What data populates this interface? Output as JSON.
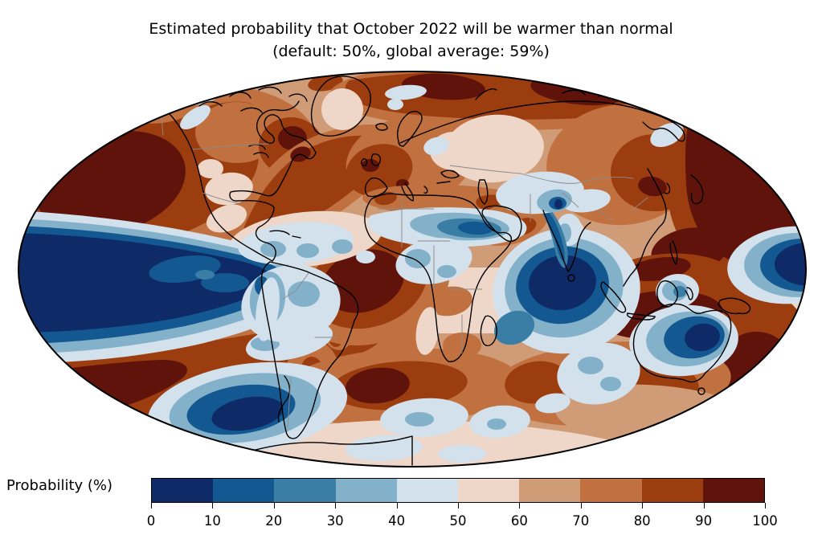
{
  "title": {
    "line1": "Estimated probability that October 2022 will be warmer than normal",
    "line2": "(default: 50%, global average: 59%)"
  },
  "colorbar": {
    "label": "Probability (%)",
    "ticks": [
      0,
      10,
      20,
      30,
      40,
      50,
      60,
      70,
      80,
      90,
      100
    ],
    "segment_colors": [
      "#0e2a67",
      "#135891",
      "#3a7ea6",
      "#84b1ca",
      "#d3e1ec",
      "#eed6c8",
      "#d09b77",
      "#c0713f",
      "#9c3d10",
      "#5f130b"
    ]
  },
  "map": {
    "projection": "Mollweide world map",
    "coastline_color": "#000000",
    "country_border_color": "#8a8a8a",
    "outline_color": "#000000",
    "background_color": "#ffffff"
  },
  "chart_data": {
    "type": "heatmap",
    "title": "Estimated probability that October 2022 will be warmer than normal",
    "subtitle": "(default: 50%, global average: 59%)",
    "variable": "Probability that October 2022 monthly mean temperature exceeds normal",
    "units": "%",
    "default_value_pct": 50,
    "global_average_pct": 59,
    "projection": "Mollweide",
    "contour_levels": [
      0,
      10,
      20,
      30,
      40,
      50,
      60,
      70,
      80,
      90,
      100
    ],
    "colormap": "diverging blue (low probability) to brown-red (high probability), 10 discrete bands",
    "legend_position": "bottom horizontal colorbar",
    "regions": [
      {
        "region": "Equatorial eastern Pacific (La Nina cold tongue)",
        "probability_pct": "0-10"
      },
      {
        "region": "North Pacific (subpolar gyre)",
        "probability_pct": "90-100"
      },
      {
        "region": "Subtropical South Pacific band",
        "probability_pct": "90-100"
      },
      {
        "region": "Far southern South Pacific",
        "probability_pct": "10-30"
      },
      {
        "region": "Alaska and northern Canada",
        "probability_pct": "70-90"
      },
      {
        "region": "Contiguous United States",
        "probability_pct": "60-80"
      },
      {
        "region": "Quebec / Hudson Bay area",
        "probability_pct": "80-100"
      },
      {
        "region": "North Atlantic mid-latitudes",
        "probability_pct": "80-90"
      },
      {
        "region": "Caribbean and Gulf of Mexico",
        "probability_pct": "30-50"
      },
      {
        "region": "Amazon basin",
        "probability_pct": "20-40"
      },
      {
        "region": "Tropical South Atlantic off Brazil",
        "probability_pct": "90-100"
      },
      {
        "region": "Western Europe",
        "probability_pct": "80-100"
      },
      {
        "region": "Sahel and central Africa",
        "probability_pct": "20-40"
      },
      {
        "region": "Southern Africa",
        "probability_pct": "60-80"
      },
      {
        "region": "Western equatorial Indian Ocean",
        "probability_pct": "0-20"
      },
      {
        "region": "Arabian Sea along west coast of India",
        "probability_pct": "10-30"
      },
      {
        "region": "Central Asia",
        "probability_pct": "30-50"
      },
      {
        "region": "East Asia and Northwest Pacific",
        "probability_pct": "80-100"
      },
      {
        "region": "Maritime Continent seas",
        "probability_pct": "90-100"
      },
      {
        "region": "Eastern interior Australia",
        "probability_pct": "10-30"
      },
      {
        "region": "Coral and Tasman Seas / New Zealand",
        "probability_pct": "90-100"
      },
      {
        "region": "Arctic rim",
        "probability_pct": "80-100"
      },
      {
        "region": "Southern Ocean south of Africa",
        "probability_pct": "80-100"
      },
      {
        "region": "Antarctic coastal zone",
        "probability_pct": "40-60"
      }
    ]
  }
}
